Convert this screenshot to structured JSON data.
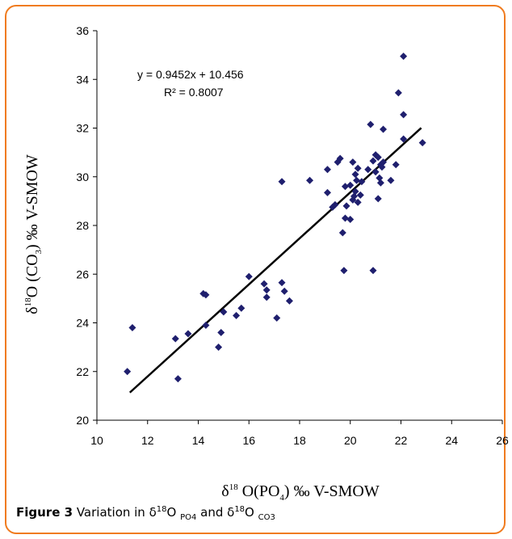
{
  "chart_data": {
    "type": "scatter",
    "xlabel": "δ18O(PO4) ‰ V-SMOW",
    "ylabel": "δ18O (CO3) ‰ V-SMOW",
    "xlim": [
      10,
      26
    ],
    "ylim": [
      20,
      36
    ],
    "xticks": [
      "10",
      "12",
      "14",
      "16",
      "18",
      "20",
      "22",
      "24",
      "26"
    ],
    "yticks": [
      "20",
      "22",
      "24",
      "26",
      "28",
      "30",
      "32",
      "34",
      "36"
    ],
    "grid": false,
    "marker": "diamond",
    "marker_color": "#1f1f6e",
    "trendline": {
      "slope": 0.9452,
      "intercept": 10.456,
      "x_range": [
        11.3,
        22.8
      ],
      "equation_text": "y = 0.9452x + 10.456",
      "r2_text": "R² = 0.8007"
    },
    "points": [
      {
        "x": 11.2,
        "y": 22.0
      },
      {
        "x": 11.4,
        "y": 23.8
      },
      {
        "x": 13.1,
        "y": 23.35
      },
      {
        "x": 13.2,
        "y": 21.7
      },
      {
        "x": 13.6,
        "y": 23.55
      },
      {
        "x": 14.2,
        "y": 25.2
      },
      {
        "x": 14.3,
        "y": 25.15
      },
      {
        "x": 14.3,
        "y": 23.9
      },
      {
        "x": 14.8,
        "y": 23.0
      },
      {
        "x": 14.9,
        "y": 23.6
      },
      {
        "x": 15.0,
        "y": 24.45
      },
      {
        "x": 15.5,
        "y": 24.3
      },
      {
        "x": 15.7,
        "y": 24.6
      },
      {
        "x": 16.0,
        "y": 25.9
      },
      {
        "x": 16.6,
        "y": 25.6
      },
      {
        "x": 16.7,
        "y": 25.05
      },
      {
        "x": 16.7,
        "y": 25.35
      },
      {
        "x": 17.1,
        "y": 24.2
      },
      {
        "x": 17.3,
        "y": 25.65
      },
      {
        "x": 17.3,
        "y": 29.8
      },
      {
        "x": 17.4,
        "y": 25.3
      },
      {
        "x": 17.6,
        "y": 24.9
      },
      {
        "x": 18.4,
        "y": 29.85
      },
      {
        "x": 19.1,
        "y": 29.35
      },
      {
        "x": 19.1,
        "y": 30.3
      },
      {
        "x": 19.3,
        "y": 28.75
      },
      {
        "x": 19.4,
        "y": 28.85
      },
      {
        "x": 19.5,
        "y": 30.6
      },
      {
        "x": 19.6,
        "y": 30.75
      },
      {
        "x": 19.7,
        "y": 27.7
      },
      {
        "x": 19.75,
        "y": 26.15
      },
      {
        "x": 19.8,
        "y": 28.3
      },
      {
        "x": 19.8,
        "y": 29.6
      },
      {
        "x": 19.85,
        "y": 28.8
      },
      {
        "x": 20.0,
        "y": 28.25
      },
      {
        "x": 20.0,
        "y": 29.65
      },
      {
        "x": 20.1,
        "y": 30.6
      },
      {
        "x": 20.1,
        "y": 29.05
      },
      {
        "x": 20.15,
        "y": 29.2
      },
      {
        "x": 20.2,
        "y": 29.4
      },
      {
        "x": 20.2,
        "y": 30.1
      },
      {
        "x": 20.25,
        "y": 29.85
      },
      {
        "x": 20.3,
        "y": 28.95
      },
      {
        "x": 20.3,
        "y": 30.35
      },
      {
        "x": 20.4,
        "y": 29.25
      },
      {
        "x": 20.45,
        "y": 29.8
      },
      {
        "x": 20.7,
        "y": 30.3
      },
      {
        "x": 20.8,
        "y": 32.15
      },
      {
        "x": 20.9,
        "y": 26.15
      },
      {
        "x": 20.9,
        "y": 30.65
      },
      {
        "x": 21.0,
        "y": 30.9
      },
      {
        "x": 21.0,
        "y": 30.2
      },
      {
        "x": 21.1,
        "y": 29.1
      },
      {
        "x": 21.1,
        "y": 30.8
      },
      {
        "x": 21.15,
        "y": 29.95
      },
      {
        "x": 21.2,
        "y": 30.5
      },
      {
        "x": 21.2,
        "y": 29.75
      },
      {
        "x": 21.25,
        "y": 30.4
      },
      {
        "x": 21.3,
        "y": 31.95
      },
      {
        "x": 21.3,
        "y": 30.6
      },
      {
        "x": 21.6,
        "y": 29.85
      },
      {
        "x": 21.8,
        "y": 30.5
      },
      {
        "x": 21.9,
        "y": 33.45
      },
      {
        "x": 22.1,
        "y": 32.55
      },
      {
        "x": 22.1,
        "y": 31.55
      },
      {
        "x": 22.1,
        "y": 34.95
      },
      {
        "x": 22.85,
        "y": 31.4
      }
    ]
  },
  "caption": {
    "label": "Figure 3",
    "text_1": "Variation in δ",
    "sup_1": "18",
    "text_2": "O",
    "sub_1": "PO4",
    "text_3": "and δ",
    "sup_2": "18",
    "text_4": "O",
    "sub_2": "CO3"
  }
}
